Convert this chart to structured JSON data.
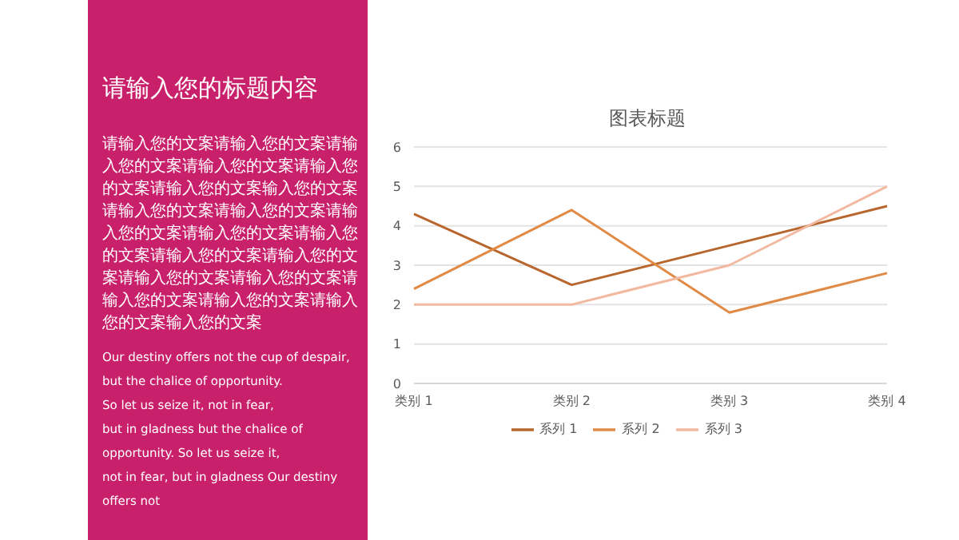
{
  "chart_data": {
    "type": "line",
    "title": "图表标题",
    "annotations": [
      "请输入您的标题内容",
      "请输入您的文案请输入您的文案请输入您的文案请输入您的文案请输入您的文案请输入您的文案输入您的文案请输入您的文案请输入您的文案请输入您的文案请输入您的文案请输入您的文案请输入您的文案请输入您的文案请输入您的文案请输入您的文案请输入您的文案请输入您的文案请输入您的文案输入您的文案",
      "Our destiny offers not the cup of despair,",
      "but the chalice of opportunity.",
      "So let us seize it, not in fear,",
      "but in gladness but the chalice of",
      "opportunity. So let us seize it,",
      "not in fear, but in gladness Our destiny",
      "offers not"
    ],
    "categories": [
      "类别 1",
      "类别 2",
      "类别 3",
      "类别 4"
    ],
    "series": [
      {
        "name": "系列 1",
        "color": "#b8662e",
        "values": [
          4.3,
          2.5,
          3.5,
          4.5
        ]
      },
      {
        "name": "系列 2",
        "color": "#e08a45",
        "values": [
          2.4,
          4.4,
          1.8,
          2.8
        ]
      },
      {
        "name": "系列 3",
        "color": "#f2b9a0",
        "values": [
          2,
          2,
          3,
          5
        ]
      }
    ],
    "ylim": [
      0,
      6
    ],
    "yticks": [
      0,
      1,
      2,
      3,
      4,
      5,
      6
    ],
    "grid": "y",
    "legend": "bottom",
    "marker": "none",
    "line_style": "solid"
  }
}
